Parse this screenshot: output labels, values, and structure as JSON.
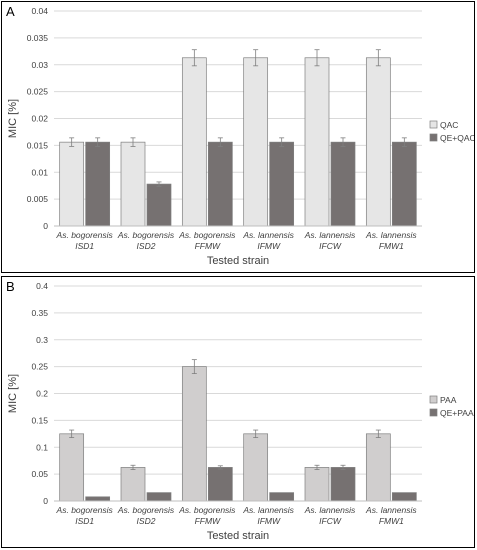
{
  "chart_data": [
    {
      "panel": "A",
      "type": "bar",
      "categories": [
        {
          "line1": "As. bogorensis",
          "line2": "ISD1"
        },
        {
          "line1": "As. bogorensis",
          "line2": "ISD2"
        },
        {
          "line1": "As. bogorensis",
          "line2": "FFMW"
        },
        {
          "line1": "As. lannensis",
          "line2": "IFMW"
        },
        {
          "line1": "As. lannensis",
          "line2": "IFCW"
        },
        {
          "line1": "As. lannensis",
          "line2": "FMW1"
        }
      ],
      "series": [
        {
          "name": "QAC",
          "color": "#e6e6e6",
          "values": [
            0.0156,
            0.0156,
            0.0313,
            0.0313,
            0.0313,
            0.0313
          ],
          "errors": [
            0.0008,
            0.0008,
            0.0015,
            0.0015,
            0.0015,
            0.0015
          ]
        },
        {
          "name": "QE+QAC",
          "color": "#767171",
          "values": [
            0.0156,
            0.0078,
            0.0156,
            0.0156,
            0.0156,
            0.0156
          ],
          "errors": [
            0.0008,
            0.0004,
            0.0008,
            0.0008,
            0.0008,
            0.0008
          ]
        }
      ],
      "yticks": [
        "0",
        "0.005",
        "0.01",
        "0.015",
        "0.02",
        "0.025",
        "0.03",
        "0.035",
        "0.04"
      ],
      "ylim": [
        0,
        0.04
      ],
      "xlabel": "Tested strain",
      "ylabel": "MIC [%]",
      "grid": true,
      "legend": "right"
    },
    {
      "panel": "B",
      "type": "bar",
      "categories": [
        {
          "line1": "As. bogorensis",
          "line2": "ISD1"
        },
        {
          "line1": "As. bogorensis",
          "line2": "ISD2"
        },
        {
          "line1": "As. bogorensis",
          "line2": "FFMW"
        },
        {
          "line1": "As. lannensis",
          "line2": "IFMW"
        },
        {
          "line1": "As. lannensis",
          "line2": "IFCW"
        },
        {
          "line1": "As. lannensis",
          "line2": "FMW1"
        }
      ],
      "series": [
        {
          "name": "PAA",
          "color": "#d0cece",
          "values": [
            0.125,
            0.0625,
            0.25,
            0.125,
            0.0625,
            0.125
          ],
          "errors": [
            0.007,
            0.004,
            0.013,
            0.007,
            0.004,
            0.007
          ]
        },
        {
          "name": "QE+PAA",
          "color": "#767171",
          "values": [
            0.0078,
            0.0156,
            0.0625,
            0.0156,
            0.0625,
            0.0156
          ],
          "errors": [
            0,
            0,
            0.003,
            0,
            0.004,
            0
          ]
        }
      ],
      "yticks": [
        "0",
        "0.05",
        "0.1",
        "0.15",
        "0.2",
        "0.25",
        "0.3",
        "0.35",
        "0.4"
      ],
      "ylim": [
        0,
        0.4
      ],
      "xlabel": "Tested strain",
      "ylabel": "MIC [%]",
      "grid": true,
      "legend": "right"
    }
  ]
}
